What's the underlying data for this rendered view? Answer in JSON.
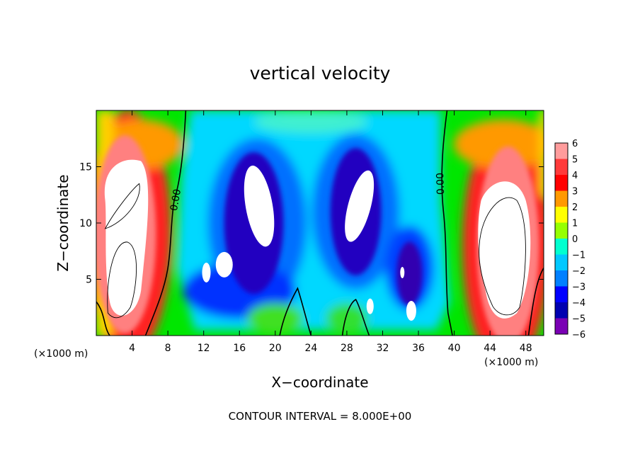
{
  "chart_data": {
    "type": "heatmap",
    "title": "vertical velocity",
    "xlabel": "X−coordinate",
    "ylabel": "Z−coordinate",
    "x_unit_label": "(×1000 m)",
    "z_unit_label": "(×1000 m)",
    "xlim": [
      0,
      50
    ],
    "ylim": [
      0,
      20
    ],
    "x_ticks": [
      "4",
      "8",
      "12",
      "16",
      "20",
      "24",
      "28",
      "32",
      "36",
      "40",
      "44",
      "48"
    ],
    "x_tick_values": [
      4,
      8,
      12,
      16,
      20,
      24,
      28,
      32,
      36,
      40,
      44,
      48
    ],
    "y_ticks": [
      "5",
      "10",
      "15"
    ],
    "y_tick_values": [
      5,
      10,
      15
    ],
    "colorbar": {
      "range": [
        -6,
        6
      ],
      "labels": [
        "6",
        "5",
        "4",
        "3",
        "2",
        "1",
        "0",
        "−1",
        "−2",
        "−3",
        "−4",
        "−5",
        "−6"
      ],
      "colors": [
        "#ff9c9c",
        "#ff3a3a",
        "#ff0000",
        "#ff9900",
        "#ffff00",
        "#96ff00",
        "#00e600",
        "#00ffd0",
        "#00c8ff",
        "#0080ff",
        "#0000ff",
        "#0000b0",
        "#7a00b4"
      ]
    },
    "zero_contour_labels": [
      "0.00",
      "0.00"
    ],
    "grid": false,
    "legend": "colorbar-right",
    "note": "CONTOUR INTERVAL = 8.000E+00"
  }
}
